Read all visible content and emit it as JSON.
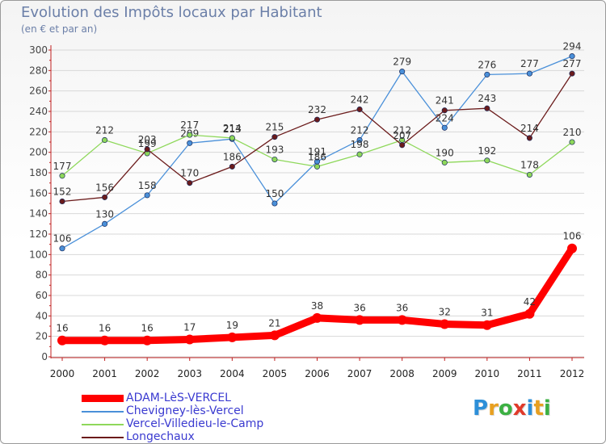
{
  "header": {
    "title": "Evolution des Impôts locaux par Habitant",
    "subtitle": "(en € et par an)"
  },
  "logo": {
    "text": "Proxiti",
    "colors": [
      "#2d8fd8",
      "#e8a020",
      "#3cb043",
      "#e03a2a",
      "#2d8fd8",
      "#e8a020",
      "#3cb043"
    ]
  },
  "chart_data": {
    "type": "line",
    "x": [
      "2000",
      "2001",
      "2002",
      "2003",
      "2004",
      "2005",
      "2006",
      "2007",
      "2008",
      "2009",
      "2010",
      "2011",
      "2012"
    ],
    "ylim": [
      0,
      300
    ],
    "yticks": [
      0,
      20,
      40,
      60,
      80,
      100,
      120,
      140,
      160,
      180,
      200,
      220,
      240,
      260,
      280,
      300
    ],
    "grid": true,
    "legend_position": "bottom-left",
    "series": [
      {
        "name": "ADAM-LèS-VERCEL",
        "color": "#ff0000",
        "highlight": true,
        "values": [
          16,
          16,
          16,
          17,
          19,
          21,
          38,
          36,
          36,
          32,
          31,
          42,
          106
        ]
      },
      {
        "name": "Chevigney-lès-Vercel",
        "color": "#4a90d9",
        "values": [
          106,
          130,
          158,
          209,
          213,
          150,
          191,
          212,
          279,
          224,
          276,
          277,
          294
        ]
      },
      {
        "name": "Vercel-Villedieu-le-Camp",
        "color": "#8ed85a",
        "values": [
          177,
          212,
          199,
          217,
          214,
          193,
          186,
          198,
          212,
          190,
          192,
          178,
          210
        ]
      },
      {
        "name": "Longechaux",
        "color": "#6b1b1b",
        "values": [
          152,
          156,
          203,
          170,
          186,
          215,
          232,
          242,
          207,
          241,
          243,
          214,
          277
        ]
      }
    ]
  }
}
